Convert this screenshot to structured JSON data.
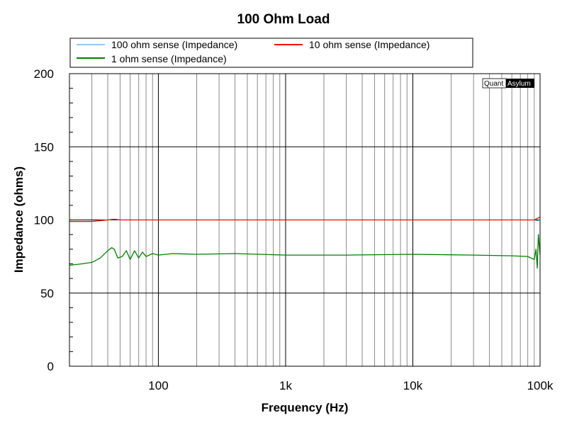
{
  "chart_data": {
    "type": "line",
    "title": "100 Ohm Load",
    "xlabel": "Frequency (Hz)",
    "ylabel": "Impedance (ohms)",
    "xscale": "log",
    "xlim": [
      20,
      100000
    ],
    "ylim": [
      0,
      200
    ],
    "grid": true,
    "legend_position": "top",
    "xticks": [
      {
        "value": 100,
        "label": "100"
      },
      {
        "value": 1000,
        "label": "1k"
      },
      {
        "value": 10000,
        "label": "10k"
      },
      {
        "value": 100000,
        "label": "100k"
      }
    ],
    "yticks": [
      {
        "value": 0,
        "label": "0"
      },
      {
        "value": 50,
        "label": "50"
      },
      {
        "value": 100,
        "label": "100"
      },
      {
        "value": 150,
        "label": "150"
      },
      {
        "value": 200,
        "label": "200"
      }
    ],
    "series": [
      {
        "name": "100 ohm sense (Impedance)",
        "color": "#3b8ed8",
        "x": [
          20,
          30,
          40,
          45,
          50,
          70,
          100,
          200,
          500,
          1000,
          2000,
          5000,
          10000,
          20000,
          50000,
          80000,
          90000,
          95000,
          100000
        ],
        "y": [
          99,
          99,
          100,
          100.5,
          100,
          100,
          100,
          100,
          100,
          100,
          100,
          100,
          100,
          100,
          100,
          100,
          100,
          99.5,
          100
        ]
      },
      {
        "name": "10 ohm sense (Impedance)",
        "color": "#ff0000",
        "x": [
          20,
          30,
          40,
          45,
          50,
          70,
          100,
          200,
          500,
          1000,
          2000,
          5000,
          10000,
          20000,
          50000,
          80000,
          90000,
          95000,
          100000
        ],
        "y": [
          99,
          99,
          100,
          100.5,
          100,
          100,
          100,
          100,
          100,
          100,
          100,
          100,
          100,
          100,
          100,
          100,
          100,
          101,
          102
        ]
      },
      {
        "name": "1 ohm sense (Impedance)",
        "color": "#008000",
        "x": [
          20,
          25,
          30,
          35,
          40,
          43,
          45,
          48,
          52,
          56,
          60,
          65,
          70,
          75,
          80,
          90,
          100,
          130,
          200,
          400,
          1000,
          3000,
          10000,
          30000,
          60000,
          80000,
          90000,
          93000,
          95000,
          97000,
          100000
        ],
        "y": [
          69,
          70,
          71,
          74,
          79,
          81,
          80,
          74,
          75,
          79,
          73,
          79,
          74,
          78,
          75,
          77,
          76,
          77,
          76.5,
          77,
          76,
          76,
          76.5,
          76,
          75.5,
          75,
          73,
          80,
          67,
          90,
          76
        ]
      }
    ]
  },
  "watermark": {
    "left": "Quant",
    "right": "Asylum"
  }
}
